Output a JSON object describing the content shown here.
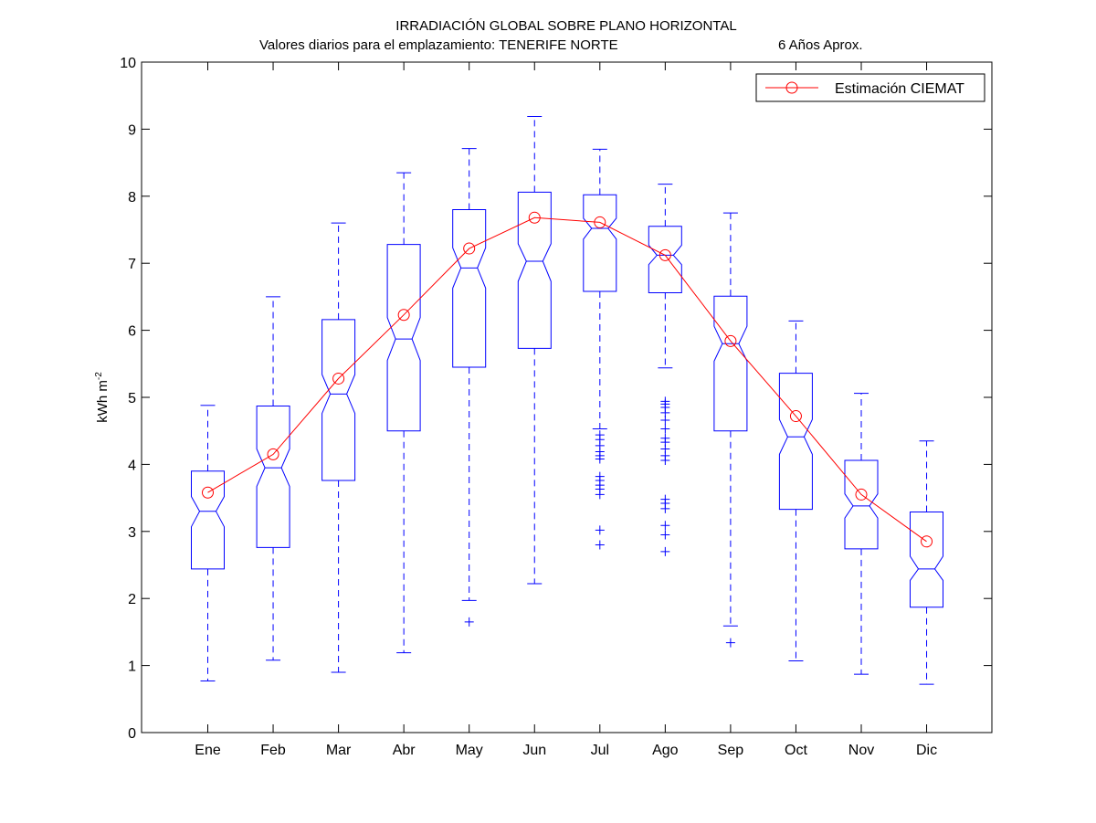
{
  "chart_data": {
    "type": "boxplot",
    "title": "IRRADIACIÓN GLOBAL SOBRE PLANO HORIZONTAL",
    "subtitle_left": "Valores diarios para el emplazamiento:  TENERIFE NORTE",
    "subtitle_right": "6 Años Aprox.",
    "ylabel": "kWh m",
    "ylabel_superscript": "-2",
    "ylim": [
      0,
      10
    ],
    "yticks": [
      0,
      1,
      2,
      3,
      4,
      5,
      6,
      7,
      8,
      9,
      10
    ],
    "grid": false,
    "legend_position": "top-right",
    "categories": [
      "Ene",
      "Feb",
      "Mar",
      "Abr",
      "May",
      "Jun",
      "Jul",
      "Ago",
      "Sep",
      "Oct",
      "Nov",
      "Dic"
    ],
    "boxes": [
      {
        "whisker_low": 0.77,
        "q1": 2.44,
        "median": 3.3,
        "q3": 3.9,
        "whisker_high": 4.88,
        "notch_low": 3.07,
        "notch_high": 3.52,
        "outliers": []
      },
      {
        "whisker_low": 1.08,
        "q1": 2.76,
        "median": 3.95,
        "q3": 4.87,
        "whisker_high": 6.5,
        "notch_low": 3.67,
        "notch_high": 4.23,
        "outliers": []
      },
      {
        "whisker_low": 0.9,
        "q1": 3.76,
        "median": 5.05,
        "q3": 6.16,
        "whisker_high": 7.6,
        "notch_low": 4.76,
        "notch_high": 5.34,
        "outliers": []
      },
      {
        "whisker_low": 1.19,
        "q1": 4.5,
        "median": 5.87,
        "q3": 7.28,
        "whisker_high": 8.35,
        "notch_low": 5.55,
        "notch_high": 6.19,
        "outliers": []
      },
      {
        "whisker_low": 1.97,
        "q1": 5.45,
        "median": 6.93,
        "q3": 7.8,
        "whisker_high": 8.71,
        "notch_low": 6.63,
        "notch_high": 7.23,
        "outliers": [
          1.65
        ]
      },
      {
        "whisker_low": 2.22,
        "q1": 5.73,
        "median": 7.03,
        "q3": 8.06,
        "whisker_high": 9.19,
        "notch_low": 6.73,
        "notch_high": 7.29,
        "outliers": []
      },
      {
        "whisker_low": 4.53,
        "q1": 6.58,
        "median": 7.52,
        "q3": 8.02,
        "whisker_high": 8.7,
        "notch_low": 7.36,
        "notch_high": 7.67,
        "outliers": [
          4.44,
          4.37,
          4.28,
          4.19,
          4.13,
          4.08,
          3.82,
          3.76,
          3.69,
          3.63,
          3.55,
          3.02,
          2.8
        ]
      },
      {
        "whisker_low": 5.44,
        "q1": 6.56,
        "median": 7.12,
        "q3": 7.55,
        "whisker_high": 8.18,
        "notch_low": 6.98,
        "notch_high": 7.27,
        "outliers": [
          4.94,
          4.9,
          4.85,
          4.77,
          4.66,
          4.53,
          4.39,
          4.33,
          4.23,
          4.13,
          4.06,
          3.48,
          3.42,
          3.34,
          3.09,
          2.95,
          2.7
        ]
      },
      {
        "whisker_low": 1.59,
        "q1": 4.5,
        "median": 5.8,
        "q3": 6.51,
        "whisker_high": 7.75,
        "notch_low": 5.54,
        "notch_high": 6.06,
        "outliers": [
          1.34
        ]
      },
      {
        "whisker_low": 1.07,
        "q1": 3.33,
        "median": 4.41,
        "q3": 5.36,
        "whisker_high": 6.14,
        "notch_low": 4.15,
        "notch_high": 4.67,
        "outliers": []
      },
      {
        "whisker_low": 0.87,
        "q1": 2.74,
        "median": 3.38,
        "q3": 4.06,
        "whisker_high": 5.06,
        "notch_low": 3.2,
        "notch_high": 3.56,
        "outliers": []
      },
      {
        "whisker_low": 0.72,
        "q1": 1.87,
        "median": 2.44,
        "q3": 3.29,
        "whisker_high": 4.35,
        "notch_low": 2.27,
        "notch_high": 2.63,
        "outliers": []
      }
    ],
    "series": [
      {
        "name": "Estimación CIEMAT",
        "type": "line",
        "color": "#ff0000",
        "marker": "circle",
        "values": [
          3.58,
          4.15,
          5.28,
          6.23,
          7.22,
          7.68,
          7.61,
          7.12,
          5.84,
          4.72,
          3.55,
          2.85
        ]
      }
    ],
    "box_color": "#0000ff"
  }
}
